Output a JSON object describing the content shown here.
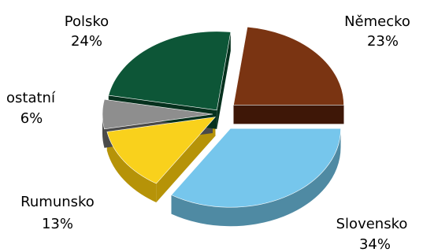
{
  "chart_data": {
    "type": "pie",
    "title": "",
    "three_d": true,
    "exploded": true,
    "slices": [
      {
        "label": "Slovensko",
        "pct_label": "34%",
        "value": 34,
        "color": "#76C6EC",
        "side": "#4F8AA3"
      },
      {
        "label": "Rumunsko",
        "pct_label": "13%",
        "value": 13,
        "color": "#F9D11C",
        "side": "#B69308"
      },
      {
        "label": "ostatní",
        "pct_label": "6%",
        "value": 6,
        "color": "#8E8E8E",
        "side": "#4A4A4A"
      },
      {
        "label": "Polsko",
        "pct_label": "24%",
        "value": 24,
        "color": "#0D5637",
        "side": "#06311E"
      },
      {
        "label": "Německo",
        "pct_label": "23%",
        "value": 23,
        "color": "#7A3412",
        "side": "#3E1707"
      }
    ]
  }
}
